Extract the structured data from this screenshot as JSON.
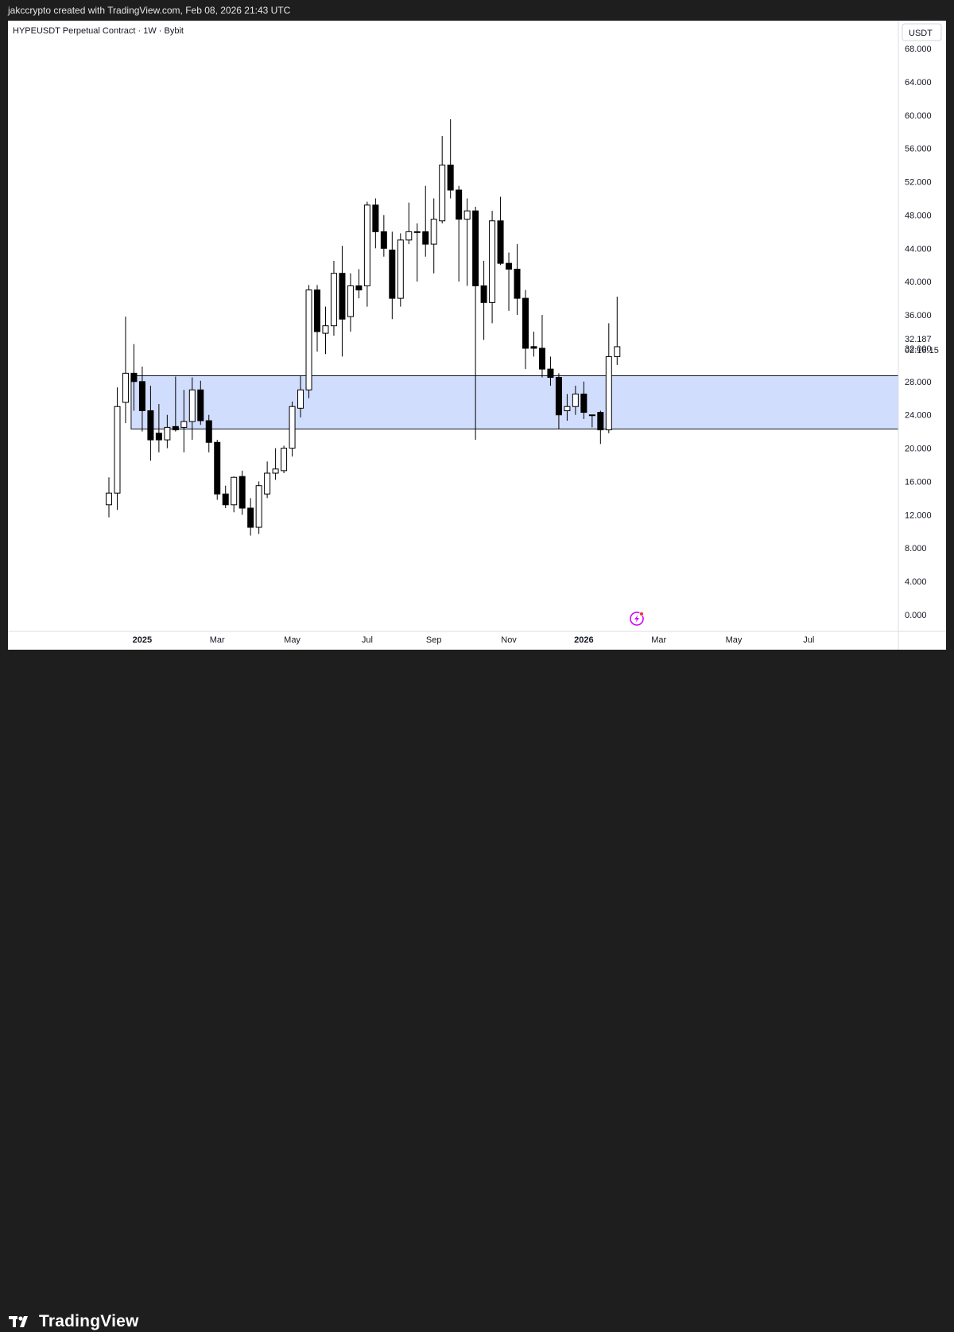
{
  "header": {
    "credit": "jakccrypto created with TradingView.com, Feb 08, 2026 21:43 UTC"
  },
  "chart": {
    "symbol_title": "HYPEUSDT Perpetual Contract · 1W · Bybit",
    "currency_label": "USDT",
    "price_label": "32.187",
    "countdown_label": "02:16:15"
  },
  "footer": {
    "brand": "TradingView"
  },
  "colors": {
    "background_dark": "#1e1e1e",
    "chart_background": "#ffffff",
    "zone_fill": "#d1ddfc",
    "candle_up_body": "#ffffff",
    "candle_down_body": "#000000",
    "candle_outline": "#000000",
    "axis_text": "#131722",
    "event_icon": "#d500f9"
  },
  "icons": {
    "event_marker": "lightning-icon",
    "logo": "tradingview-logo-icon"
  },
  "chart_data": {
    "type": "candlestick",
    "symbol": "HYPEUSDT",
    "timeframe": "1W",
    "exchange": "Bybit",
    "y_axis": {
      "range": [
        0,
        70
      ],
      "ticks": [
        "68.000",
        "64.000",
        "60.000",
        "56.000",
        "52.000",
        "48.000",
        "44.000",
        "40.000",
        "36.000",
        "32.000",
        "28.000",
        "24.000",
        "20.000",
        "16.000",
        "12.000",
        "8.000",
        "4.000",
        "0.000"
      ]
    },
    "x_axis": {
      "ticks": [
        {
          "label": "2025",
          "bold": true,
          "week": 4
        },
        {
          "label": "Mar",
          "bold": false,
          "week": 13
        },
        {
          "label": "May",
          "bold": false,
          "week": 22
        },
        {
          "label": "Jul",
          "bold": false,
          "week": 31
        },
        {
          "label": "Sep",
          "bold": false,
          "week": 39
        },
        {
          "label": "Nov",
          "bold": false,
          "week": 48
        },
        {
          "label": "2026",
          "bold": true,
          "week": 57
        },
        {
          "label": "Mar",
          "bold": false,
          "week": 66
        },
        {
          "label": "May",
          "bold": false,
          "week": 75
        },
        {
          "label": "Jul",
          "bold": false,
          "week": 84
        }
      ]
    },
    "zone": {
      "from_week": 3,
      "low": 22.3,
      "high": 28.7,
      "color": "#d1ddfc"
    },
    "last_price": 32.187,
    "grid": false,
    "candles": [
      {
        "o": 13.2,
        "h": 16.5,
        "l": 11.7,
        "c": 14.6
      },
      {
        "o": 14.6,
        "h": 27.3,
        "l": 12.6,
        "c": 25.0
      },
      {
        "o": 25.5,
        "h": 35.8,
        "l": 23.0,
        "c": 29.0
      },
      {
        "o": 29.0,
        "h": 32.5,
        "l": 24.5,
        "c": 28.0
      },
      {
        "o": 28.0,
        "h": 29.8,
        "l": 22.0,
        "c": 24.5
      },
      {
        "o": 24.5,
        "h": 27.5,
        "l": 18.5,
        "c": 21.0
      },
      {
        "o": 21.8,
        "h": 25.3,
        "l": 19.5,
        "c": 21.0
      },
      {
        "o": 21.0,
        "h": 24.0,
        "l": 20.0,
        "c": 22.5
      },
      {
        "o": 22.6,
        "h": 28.6,
        "l": 22.0,
        "c": 22.2
      },
      {
        "o": 22.5,
        "h": 27.0,
        "l": 19.5,
        "c": 23.2
      },
      {
        "o": 23.2,
        "h": 28.5,
        "l": 21.0,
        "c": 27.0
      },
      {
        "o": 27.0,
        "h": 28.1,
        "l": 22.8,
        "c": 23.3
      },
      {
        "o": 23.3,
        "h": 24.0,
        "l": 19.5,
        "c": 20.7
      },
      {
        "o": 20.7,
        "h": 21.0,
        "l": 13.8,
        "c": 14.5
      },
      {
        "o": 14.5,
        "h": 15.5,
        "l": 12.8,
        "c": 13.2
      },
      {
        "o": 13.2,
        "h": 16.6,
        "l": 12.3,
        "c": 16.5
      },
      {
        "o": 16.6,
        "h": 17.3,
        "l": 12.0,
        "c": 12.8
      },
      {
        "o": 12.8,
        "h": 14.0,
        "l": 9.5,
        "c": 10.5
      },
      {
        "o": 10.5,
        "h": 16.0,
        "l": 9.7,
        "c": 15.5
      },
      {
        "o": 14.5,
        "h": 18.4,
        "l": 14.0,
        "c": 17.0
      },
      {
        "o": 17.0,
        "h": 20.0,
        "l": 16.2,
        "c": 17.5
      },
      {
        "o": 17.3,
        "h": 20.3,
        "l": 17.0,
        "c": 20.0
      },
      {
        "o": 20.0,
        "h": 25.6,
        "l": 19.0,
        "c": 25.0
      },
      {
        "o": 24.8,
        "h": 28.7,
        "l": 23.7,
        "c": 27.0
      },
      {
        "o": 27.0,
        "h": 39.6,
        "l": 26.0,
        "c": 39.0
      },
      {
        "o": 39.0,
        "h": 39.6,
        "l": 31.6,
        "c": 34.0
      },
      {
        "o": 33.8,
        "h": 37.0,
        "l": 31.3,
        "c": 34.7
      },
      {
        "o": 34.7,
        "h": 42.5,
        "l": 33.5,
        "c": 41.0
      },
      {
        "o": 41.0,
        "h": 44.3,
        "l": 31.0,
        "c": 35.5
      },
      {
        "o": 35.8,
        "h": 41.0,
        "l": 34.0,
        "c": 39.5
      },
      {
        "o": 39.5,
        "h": 41.5,
        "l": 38.0,
        "c": 39.0
      },
      {
        "o": 39.5,
        "h": 49.6,
        "l": 37.0,
        "c": 49.2
      },
      {
        "o": 49.2,
        "h": 50.0,
        "l": 44.0,
        "c": 46.0
      },
      {
        "o": 46.0,
        "h": 48.0,
        "l": 43.0,
        "c": 44.0
      },
      {
        "o": 43.8,
        "h": 46.0,
        "l": 35.5,
        "c": 38.0
      },
      {
        "o": 38.0,
        "h": 45.8,
        "l": 37.0,
        "c": 45.0
      },
      {
        "o": 45.0,
        "h": 49.5,
        "l": 44.5,
        "c": 46.0
      },
      {
        "o": 46.0,
        "h": 47.0,
        "l": 40.0,
        "c": 46.0
      },
      {
        "o": 46.0,
        "h": 51.5,
        "l": 43.0,
        "c": 44.5
      },
      {
        "o": 44.5,
        "h": 50.0,
        "l": 41.0,
        "c": 47.5
      },
      {
        "o": 47.3,
        "h": 57.5,
        "l": 47.0,
        "c": 54.0
      },
      {
        "o": 54.0,
        "h": 59.5,
        "l": 50.0,
        "c": 51.0
      },
      {
        "o": 51.0,
        "h": 51.5,
        "l": 40.0,
        "c": 47.5
      },
      {
        "o": 47.5,
        "h": 50.0,
        "l": 39.5,
        "c": 48.5
      },
      {
        "o": 48.5,
        "h": 49.0,
        "l": 21.0,
        "c": 39.5
      },
      {
        "o": 39.5,
        "h": 42.5,
        "l": 33.0,
        "c": 37.5
      },
      {
        "o": 37.5,
        "h": 48.5,
        "l": 35.0,
        "c": 47.3
      },
      {
        "o": 47.3,
        "h": 50.2,
        "l": 42.0,
        "c": 42.2
      },
      {
        "o": 42.2,
        "h": 43.5,
        "l": 36.5,
        "c": 41.5
      },
      {
        "o": 41.5,
        "h": 44.5,
        "l": 36.0,
        "c": 38.0
      },
      {
        "o": 38.0,
        "h": 39.0,
        "l": 29.5,
        "c": 32.0
      },
      {
        "o": 32.2,
        "h": 34.0,
        "l": 31.0,
        "c": 32.0
      },
      {
        "o": 32.0,
        "h": 36.0,
        "l": 28.5,
        "c": 29.5
      },
      {
        "o": 29.5,
        "h": 31.0,
        "l": 27.5,
        "c": 28.5
      },
      {
        "o": 28.5,
        "h": 29.0,
        "l": 22.3,
        "c": 24.0
      },
      {
        "o": 24.5,
        "h": 26.5,
        "l": 23.3,
        "c": 25.0
      },
      {
        "o": 25.0,
        "h": 27.5,
        "l": 24.0,
        "c": 26.5
      },
      {
        "o": 26.5,
        "h": 28.0,
        "l": 23.5,
        "c": 24.3
      },
      {
        "o": 24.0,
        "h": 24.0,
        "l": 22.5,
        "c": 24.0
      },
      {
        "o": 24.3,
        "h": 24.5,
        "l": 20.5,
        "c": 22.2
      },
      {
        "o": 22.2,
        "h": 35.0,
        "l": 21.8,
        "c": 31.0
      },
      {
        "o": 31.0,
        "h": 38.2,
        "l": 30.0,
        "c": 32.187
      }
    ]
  }
}
